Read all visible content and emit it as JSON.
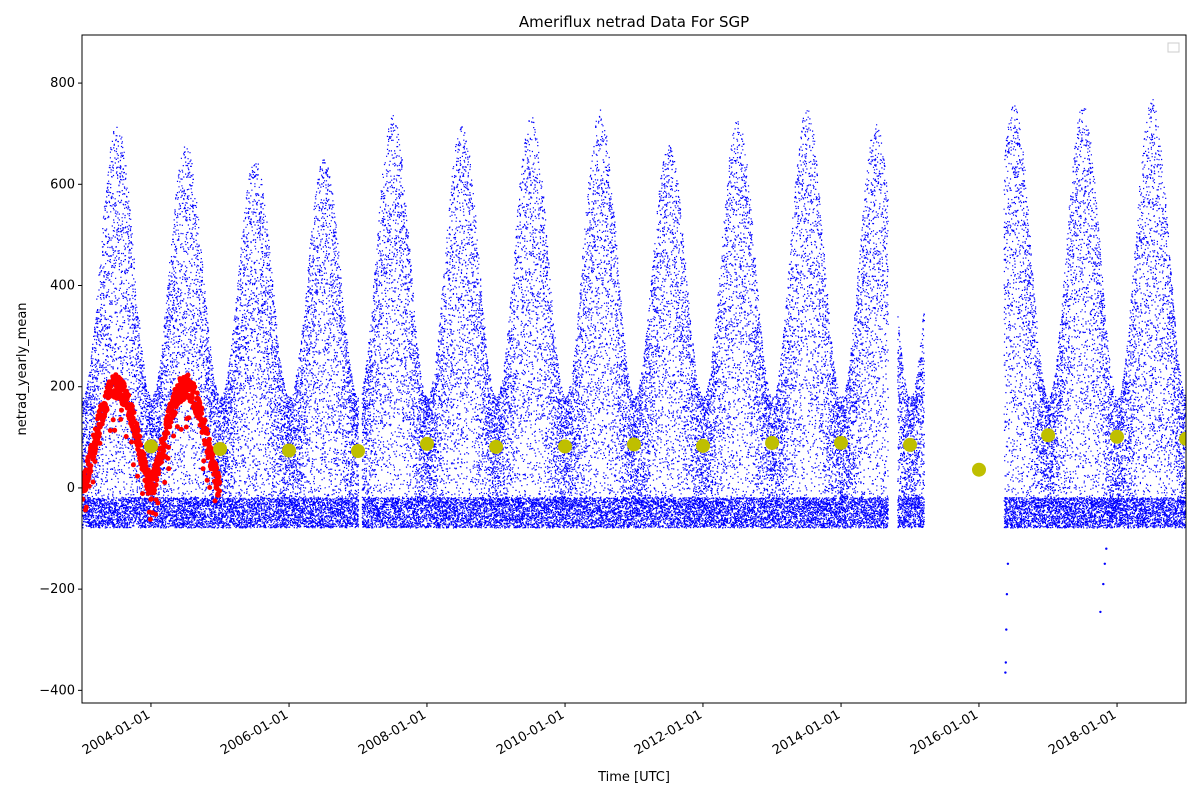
{
  "chart_data": {
    "type": "scatter",
    "title": "Ameriflux netrad Data For SGP",
    "xlabel": "Time [UTC]",
    "ylabel": "netrad_yearly_mean",
    "xlim": [
      "2003-01-01",
      "2019-01-01"
    ],
    "ylim": [
      -425,
      895
    ],
    "x_ticks": [
      "2004-01-01",
      "2006-01-01",
      "2008-01-01",
      "2010-01-01",
      "2012-01-01",
      "2014-01-01",
      "2016-01-01",
      "2018-01-01"
    ],
    "y_ticks": [
      -400,
      -200,
      0,
      200,
      400,
      600,
      800
    ],
    "grid": false,
    "legend": {
      "placement": "top-right",
      "entries": []
    },
    "data_gaps": [
      [
        "2007-01-01",
        "2007-01-20"
      ],
      [
        "2014-09-05",
        "2014-10-25"
      ],
      [
        "2015-03-15",
        "2016-05-10"
      ]
    ],
    "series": [
      {
        "kind": "raw",
        "color": "#0000ff",
        "daily_max_peak_by_year": [
          {
            "year": 2003,
            "peak": 720
          },
          {
            "year": 2004,
            "peak": 680
          },
          {
            "year": 2005,
            "peak": 650
          },
          {
            "year": 2006,
            "peak": 650
          },
          {
            "year": 2007,
            "peak": 740
          },
          {
            "year": 2008,
            "peak": 720
          },
          {
            "year": 2009,
            "peak": 735
          },
          {
            "year": 2010,
            "peak": 750
          },
          {
            "year": 2011,
            "peak": 680
          },
          {
            "year": 2012,
            "peak": 730
          },
          {
            "year": 2013,
            "peak": 750
          },
          {
            "year": 2014,
            "peak": 720
          },
          {
            "year": 2016,
            "peak": 760
          },
          {
            "year": 2017,
            "peak": 760
          },
          {
            "year": 2018,
            "peak": 770
          }
        ],
        "night_min": -60
      },
      {
        "kind": "daily_mean",
        "color": "#ff0000",
        "seasonal_peak": 200,
        "seasonal_trough": 0
      },
      {
        "kind": "yearly_mean",
        "color": "#bfbf00",
        "points": [
          {
            "x": "2004-01-01",
            "y": 82
          },
          {
            "x": "2005-01-01",
            "y": 77
          },
          {
            "x": "2006-01-01",
            "y": 74
          },
          {
            "x": "2007-01-01",
            "y": 73
          },
          {
            "x": "2008-01-01",
            "y": 87
          },
          {
            "x": "2009-01-01",
            "y": 81
          },
          {
            "x": "2010-01-01",
            "y": 82
          },
          {
            "x": "2011-01-01",
            "y": 86
          },
          {
            "x": "2012-01-01",
            "y": 83
          },
          {
            "x": "2013-01-01",
            "y": 89
          },
          {
            "x": "2014-01-01",
            "y": 89
          },
          {
            "x": "2015-01-01",
            "y": 85
          },
          {
            "x": "2016-01-01",
            "y": 36
          },
          {
            "x": "2017-01-01",
            "y": 104
          },
          {
            "x": "2018-01-01",
            "y": 101
          },
          {
            "x": "2019-01-01",
            "y": 97
          }
        ]
      }
    ],
    "spikes": [
      {
        "x": "2016-05-20",
        "y": -365
      },
      {
        "x": "2016-05-22",
        "y": -345
      },
      {
        "x": "2016-05-25",
        "y": -280
      },
      {
        "x": "2016-05-28",
        "y": -210
      },
      {
        "x": "2016-06-02",
        "y": -150
      },
      {
        "x": "2017-10-05",
        "y": -245
      },
      {
        "x": "2017-10-20",
        "y": -190
      },
      {
        "x": "2017-10-28",
        "y": -150
      },
      {
        "x": "2017-11-05",
        "y": -120
      }
    ]
  }
}
